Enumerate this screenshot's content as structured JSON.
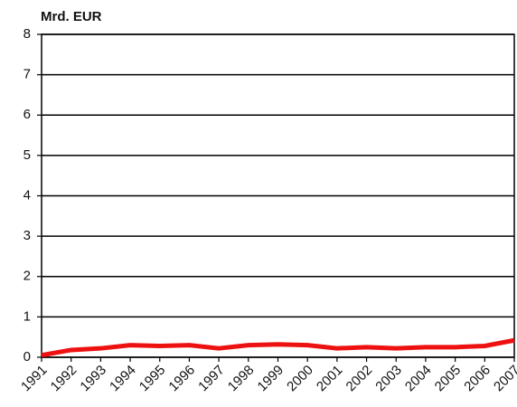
{
  "chart_data": {
    "type": "line",
    "y_label": "Mrd. EUR",
    "categories": [
      "1991",
      "1992",
      "1993",
      "1994",
      "1995",
      "1996",
      "1997",
      "1998",
      "1999",
      "2000",
      "2001",
      "2002",
      "2003",
      "2004",
      "2005",
      "2006",
      "2007"
    ],
    "series": [
      {
        "color": "#ee1111",
        "values": [
          0.05,
          0.18,
          0.22,
          0.3,
          0.28,
          0.3,
          0.22,
          0.3,
          0.32,
          0.3,
          0.22,
          0.25,
          0.22,
          0.25,
          0.25,
          0.28,
          0.42
        ]
      }
    ],
    "ylim": [
      0,
      8
    ],
    "yticks": [
      0,
      1,
      2,
      3,
      4,
      5,
      6,
      7,
      8
    ],
    "grid": true
  }
}
